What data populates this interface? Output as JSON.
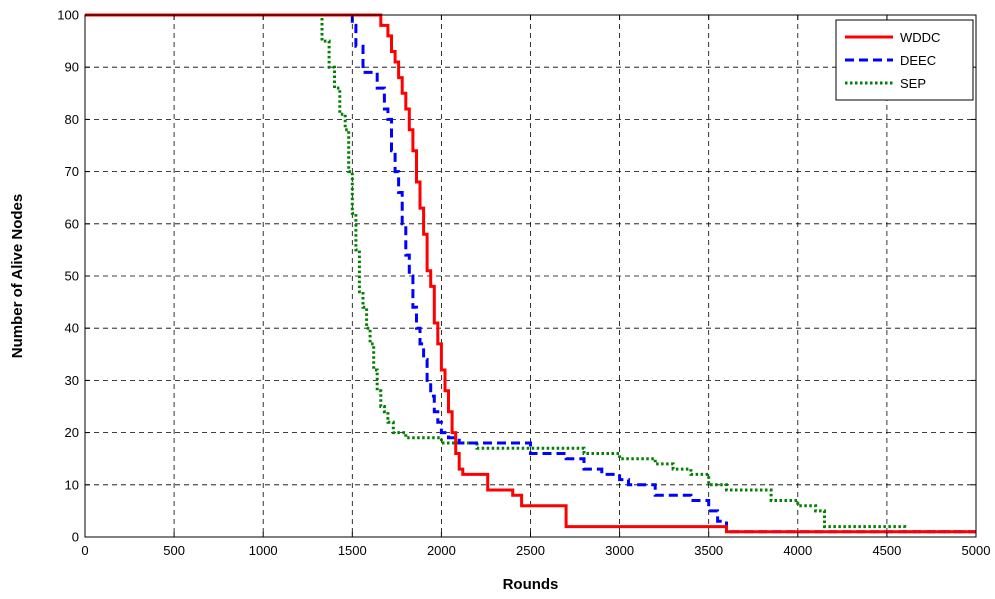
{
  "chart_data": {
    "type": "line",
    "title": "",
    "xlabel": "Rounds",
    "ylabel": "Number of Alive Nodes",
    "xlim": [
      0,
      5000
    ],
    "ylim": [
      0,
      100
    ],
    "xticks": [
      0,
      500,
      1000,
      1500,
      2000,
      2500,
      3000,
      3500,
      4000,
      4500,
      5000
    ],
    "yticks": [
      0,
      10,
      20,
      30,
      40,
      50,
      60,
      70,
      80,
      90,
      100
    ],
    "grid": true,
    "legend_position": "top-right",
    "series": [
      {
        "name": "WDDC",
        "color": "#ff0000",
        "dash": "solid",
        "x": [
          0,
          1620,
          1660,
          1700,
          1720,
          1740,
          1760,
          1780,
          1800,
          1820,
          1840,
          1860,
          1880,
          1900,
          1920,
          1940,
          1960,
          1980,
          2000,
          2020,
          2040,
          2060,
          2080,
          2100,
          2120,
          2150,
          2260,
          2400,
          2450,
          2680,
          2700,
          3000,
          3500,
          3600,
          5000
        ],
        "y": [
          100,
          100,
          98,
          96,
          93,
          91,
          88,
          85,
          82,
          78,
          74,
          68,
          63,
          58,
          51,
          48,
          41,
          37,
          32,
          28,
          24,
          20,
          16,
          13,
          12,
          12,
          9,
          8,
          6,
          6,
          2,
          2,
          2,
          1,
          1
        ]
      },
      {
        "name": "DEEC",
        "color": "#0000ff",
        "dash": "dashed",
        "x": [
          0,
          1480,
          1500,
          1520,
          1560,
          1640,
          1680,
          1700,
          1720,
          1740,
          1760,
          1780,
          1800,
          1820,
          1840,
          1860,
          1880,
          1900,
          1920,
          1940,
          1960,
          1980,
          2000,
          2040,
          2100,
          2200,
          2500,
          2700,
          2800,
          2900,
          3000,
          3050,
          3200,
          3400,
          3500,
          3550,
          3600,
          5000
        ],
        "y": [
          100,
          100,
          98,
          94,
          89,
          86,
          82,
          80,
          74,
          70,
          66,
          60,
          54,
          50,
          44,
          40,
          37,
          34,
          30,
          27,
          24,
          22,
          20,
          19,
          18,
          18,
          16,
          15,
          13,
          12,
          11,
          10,
          8,
          7,
          5,
          3,
          1,
          1
        ]
      },
      {
        "name": "SEP",
        "color": "#008000",
        "dash": "dotted",
        "x": [
          0,
          1300,
          1330,
          1370,
          1400,
          1430,
          1460,
          1480,
          1500,
          1520,
          1540,
          1560,
          1580,
          1600,
          1620,
          1640,
          1660,
          1680,
          1700,
          1730,
          1760,
          1800,
          1900,
          2000,
          2100,
          2200,
          2500,
          2800,
          3000,
          3200,
          3300,
          3400,
          3500,
          3600,
          3800,
          3850,
          4000,
          4100,
          4150,
          4500,
          4600,
          5000
        ],
        "y": [
          100,
          100,
          95,
          90,
          86,
          81,
          78,
          70,
          62,
          55,
          47,
          44,
          40,
          37,
          32,
          28,
          25,
          24,
          22,
          20,
          20,
          19,
          19,
          18,
          18,
          17,
          17,
          16,
          15,
          14,
          13,
          12,
          10,
          9,
          9,
          7,
          6,
          5,
          2,
          2,
          1,
          1
        ]
      }
    ]
  }
}
